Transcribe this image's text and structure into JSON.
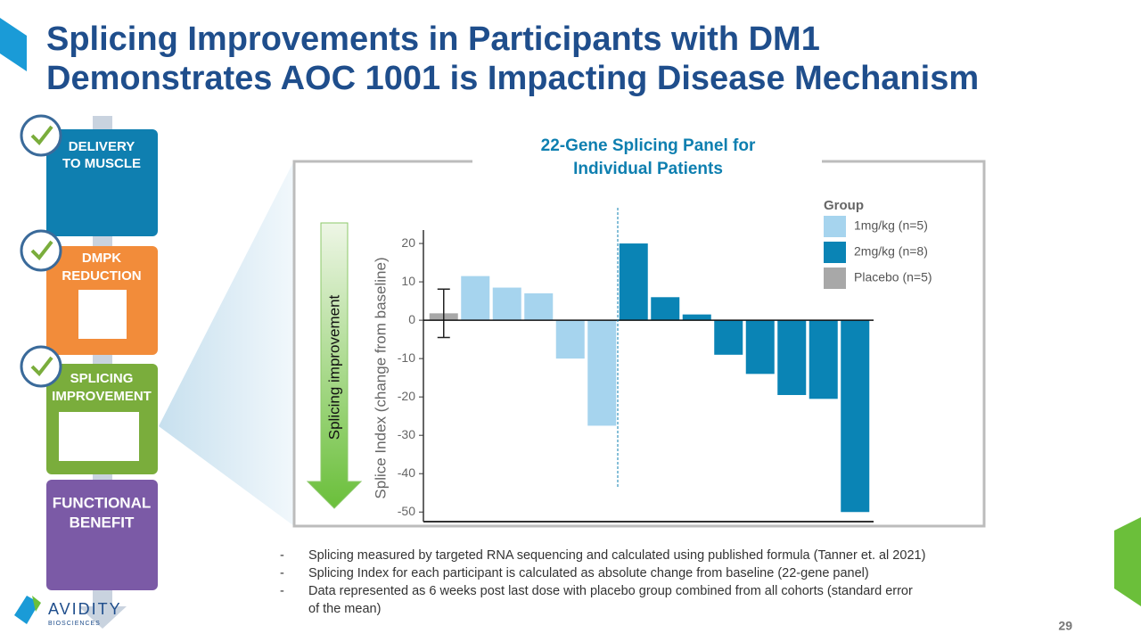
{
  "title_lines": [
    "Splicing Improvements in Participants with DM1",
    "Demonstrates AOC 1001 is Impacting Disease Mechanism"
  ],
  "steps": [
    [
      "DELIVERY",
      "TO MUSCLE"
    ],
    [
      "DMPK",
      "REDUCTION"
    ],
    [
      "SPLICING",
      "IMPROVEMENT"
    ],
    [
      "FUNCTIONAL",
      "BENEFIT"
    ]
  ],
  "logo": {
    "name": "AVIDITY",
    "sub": "BIOSCIENCES"
  },
  "notes": [
    "Splicing measured by targeted RNA sequencing and calculated using published formula (Tanner et. al 2021)",
    "Splicing Index for each participant is calculated as absolute change from baseline (22-gene panel)",
    "Data represented as 6 weeks post last dose with placebo group combined from all cohorts (standard error of the mean)"
  ],
  "page_number": "29",
  "chart_data": {
    "type": "bar",
    "title_lines": [
      "22-Gene Splicing Panel for",
      "Individual Patients"
    ],
    "ylabel": "Splice Index (change from baseline)",
    "arrow_label": "Splicing improvement",
    "legend_title": "Group",
    "categories": [
      null,
      null,
      null,
      null,
      null,
      null,
      null,
      null,
      null,
      null,
      null,
      null,
      null,
      null
    ],
    "series": [
      {
        "name": "1mg/kg (n=5)",
        "color": "#a6d4ee",
        "values": [
          null,
          11.5,
          8.5,
          7,
          -10,
          -27.5,
          null,
          null,
          null,
          null,
          null,
          null,
          null,
          null
        ]
      },
      {
        "name": "2mg/kg (n=8)",
        "color": "#0a84b5",
        "values": [
          null,
          null,
          null,
          null,
          null,
          null,
          20,
          6,
          1.5,
          -9,
          -14,
          -19.5,
          -20.5,
          -50
        ]
      },
      {
        "name": "Placebo (n=5)",
        "color": "#a8a8a8",
        "values": [
          1.8,
          null,
          null,
          null,
          null,
          null,
          null,
          null,
          null,
          null,
          null,
          null,
          null,
          null
        ],
        "errors": [
          6.3,
          null,
          null,
          null,
          null,
          null,
          null,
          null,
          null,
          null,
          null,
          null,
          null,
          null
        ]
      }
    ],
    "ylim": [
      -52.5,
      23.5
    ],
    "yticks": [
      20,
      10,
      0,
      -10,
      -20,
      -30,
      -40,
      -50
    ]
  }
}
